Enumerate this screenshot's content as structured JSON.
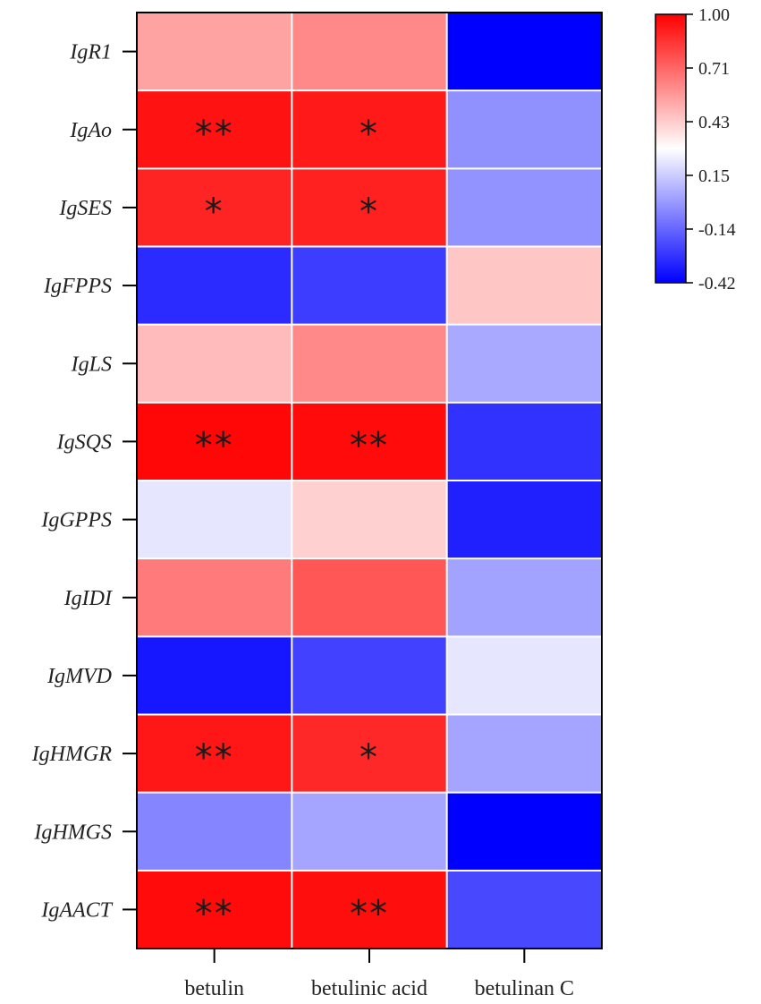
{
  "chart_data": {
    "type": "heatmap",
    "title": "",
    "xlabel": "",
    "ylabel": "",
    "columns": [
      "betulin",
      "betulinic acid",
      "betulinan C"
    ],
    "rows": [
      "IgR1",
      "IgAo",
      "IgSES",
      "IgFPPS",
      "IgLS",
      "IgSQS",
      "IgGPPS",
      "IgIDI",
      "IgMVD",
      "IgHMGR",
      "IgHMGS",
      "IgAACT"
    ],
    "values": [
      [
        0.55,
        0.62,
        -0.42
      ],
      [
        0.95,
        0.93,
        -0.02
      ],
      [
        0.9,
        0.91,
        -0.01
      ],
      [
        -0.3,
        -0.25,
        0.45
      ],
      [
        0.48,
        0.62,
        0.05
      ],
      [
        0.98,
        0.97,
        -0.28
      ],
      [
        0.22,
        0.42,
        -0.33
      ],
      [
        0.66,
        0.76,
        0.03
      ],
      [
        -0.36,
        -0.24,
        0.22
      ],
      [
        0.94,
        0.89,
        0.04
      ],
      [
        -0.05,
        0.04,
        -0.42
      ],
      [
        0.97,
        0.96,
        -0.22
      ]
    ],
    "significance": [
      [
        "",
        "",
        ""
      ],
      [
        "**",
        "*",
        ""
      ],
      [
        "*",
        "*",
        ""
      ],
      [
        "",
        "",
        ""
      ],
      [
        "",
        "",
        ""
      ],
      [
        "**",
        "**",
        ""
      ],
      [
        "",
        "",
        ""
      ],
      [
        "",
        "",
        ""
      ],
      [
        "",
        "",
        ""
      ],
      [
        "**",
        "*",
        ""
      ],
      [
        "",
        "",
        ""
      ],
      [
        "**",
        "**",
        ""
      ]
    ],
    "colorbar": {
      "min": -0.42,
      "max": 1.0,
      "mid": 0.29,
      "ticks": [
        "1.00",
        "0.71",
        "0.43",
        "0.15",
        "-0.14",
        "-0.42"
      ],
      "low_color": "#0000ff",
      "mid_color": "#ffffff",
      "high_color": "#ff0000"
    },
    "legend_position": "top-right"
  }
}
